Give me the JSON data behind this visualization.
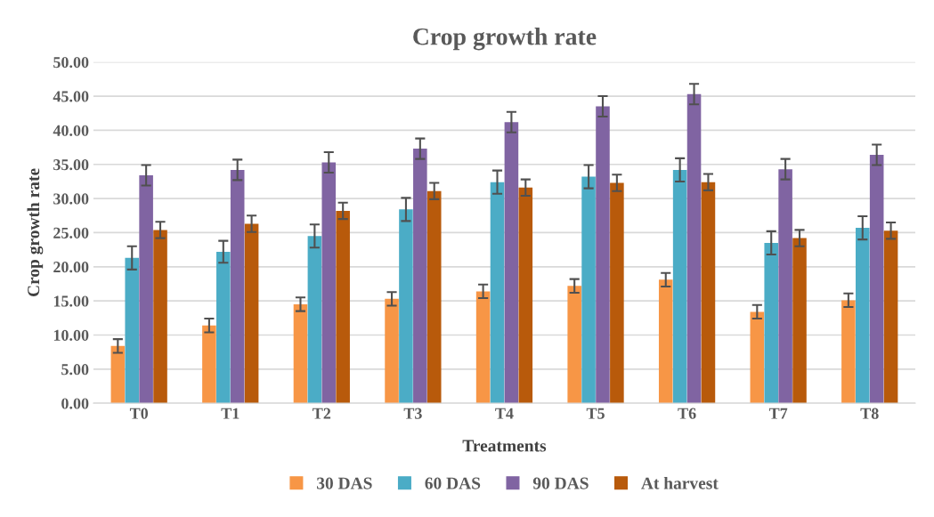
{
  "chart_data": {
    "type": "bar",
    "title": "Crop growth rate",
    "xlabel": "Treatments",
    "ylabel": "Crop growth rate",
    "categories": [
      "T0",
      "T1",
      "T2",
      "T3",
      "T4",
      "T5",
      "T6",
      "T7",
      "T8"
    ],
    "series": [
      {
        "name": "30 DAS",
        "color": "#f79646",
        "values": [
          8.4,
          11.4,
          14.5,
          15.3,
          16.4,
          17.2,
          18.1,
          13.4,
          15.1
        ],
        "errors": [
          1.0,
          1.0,
          1.0,
          1.0,
          1.0,
          1.0,
          1.0,
          1.0,
          1.0
        ]
      },
      {
        "name": "60 DAS",
        "color": "#4bacc6",
        "values": [
          21.3,
          22.2,
          24.5,
          28.4,
          32.4,
          33.2,
          34.2,
          23.5,
          25.7
        ],
        "errors": [
          1.7,
          1.6,
          1.7,
          1.7,
          1.7,
          1.7,
          1.7,
          1.7,
          1.7
        ]
      },
      {
        "name": "90 DAS",
        "color": "#8064a2",
        "values": [
          33.4,
          34.2,
          35.3,
          37.3,
          41.2,
          43.5,
          45.3,
          34.3,
          36.4
        ],
        "errors": [
          1.5,
          1.5,
          1.5,
          1.5,
          1.5,
          1.5,
          1.5,
          1.5,
          1.5
        ]
      },
      {
        "name": "At harvest",
        "color": "#b85a0b",
        "values": [
          25.4,
          26.3,
          28.2,
          31.1,
          31.6,
          32.3,
          32.4,
          24.2,
          25.3
        ],
        "errors": [
          1.2,
          1.2,
          1.2,
          1.2,
          1.2,
          1.2,
          1.2,
          1.2,
          1.2
        ]
      }
    ],
    "ylim": [
      0,
      50
    ],
    "yticks": [
      {
        "value": 0,
        "label": "0.00"
      },
      {
        "value": 5,
        "label": "5.00"
      },
      {
        "value": 10,
        "label": "10.00"
      },
      {
        "value": 15,
        "label": "15.00"
      },
      {
        "value": 20,
        "label": "20.00"
      },
      {
        "value": 25,
        "label": "25.00"
      },
      {
        "value": 30,
        "label": "30.00"
      },
      {
        "value": 35,
        "label": "35.00"
      },
      {
        "value": 40,
        "label": "40.00"
      },
      {
        "value": 45,
        "label": "45.00"
      },
      {
        "value": 50,
        "label": "50.00"
      }
    ],
    "grid": "y",
    "legend": "bottom"
  }
}
